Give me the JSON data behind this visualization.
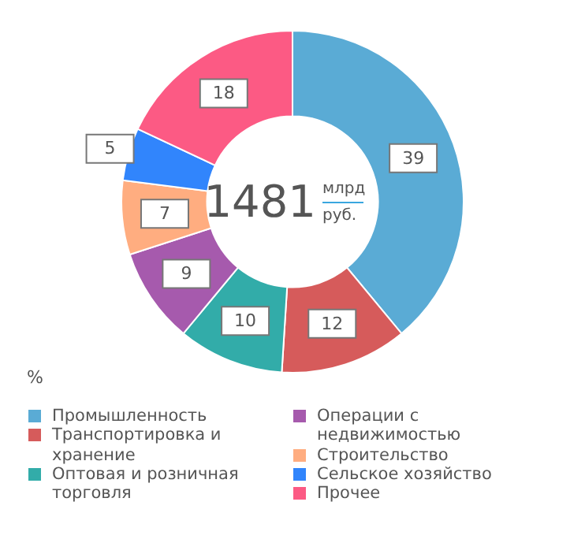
{
  "chart_data": {
    "type": "donut",
    "annotations": [
      "1481",
      "млрд",
      "руб."
    ],
    "legend_title": "%",
    "legend": "bottom",
    "data_labels": true,
    "categories": [
      "Промышленность",
      "Транспортировка и хранение",
      "Оптовая и розничная торговля",
      "Операции с недвижимостью",
      "Строительство",
      "Сельское хозяйство",
      "Прочее"
    ],
    "values": [
      39,
      12,
      10,
      9,
      7,
      5,
      18
    ],
    "colors": [
      "#5aabd5",
      "#d65b5b",
      "#32aca9",
      "#a65aad",
      "#ffad80",
      "#3185fc",
      "#fc5a84"
    ]
  }
}
